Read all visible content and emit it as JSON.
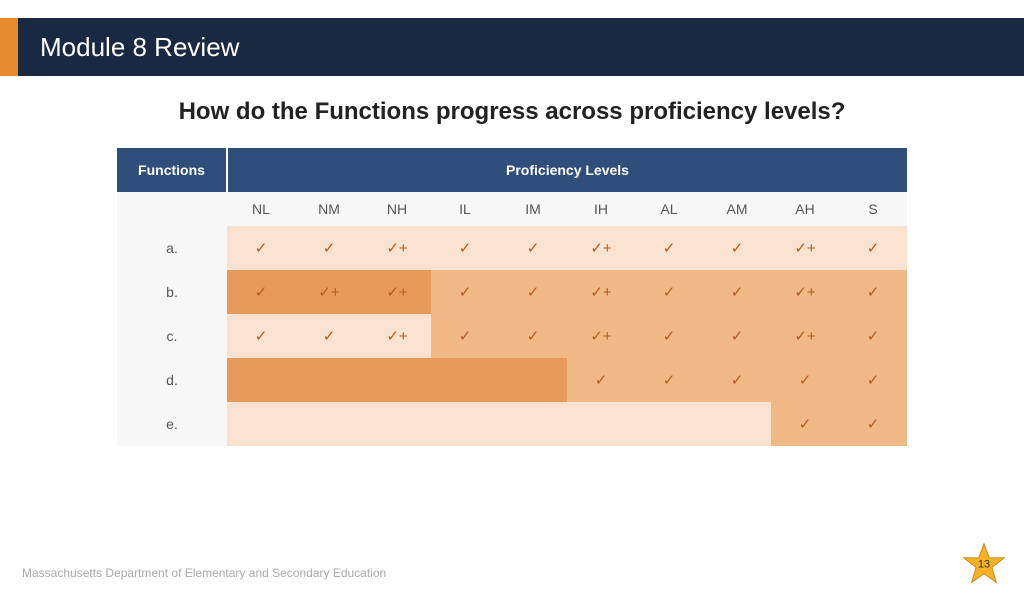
{
  "header": {
    "title": "Module 8 Review"
  },
  "subtitle": "How do the Functions progress across proficiency levels?",
  "table": {
    "functions_header": "Functions",
    "proficiency_header": "Proficiency Levels",
    "levels": [
      "NL",
      "NM",
      "NH",
      "IL",
      "IM",
      "IH",
      "AL",
      "AM",
      "AH",
      "S"
    ],
    "rows": [
      {
        "label": "a.",
        "cells": [
          "✓",
          "✓",
          "✓+",
          "✓",
          "✓",
          "✓+",
          "✓",
          "✓",
          "✓+",
          "✓"
        ],
        "colors": [
          "#f9e3d0",
          "#f9e3d0",
          "#f9e3d0",
          "#f9e3d0",
          "#f9e3d0",
          "#f9e3d0",
          "#f9e3d0",
          "#f9e3d0",
          "#f9e3d0",
          "#f9e3d0"
        ]
      },
      {
        "label": "b.",
        "cells": [
          "✓",
          "✓+",
          "✓+",
          "✓",
          "✓",
          "✓+",
          "✓",
          "✓",
          "✓+",
          "✓"
        ],
        "colors": [
          "#e89a5a",
          "#e89a5a",
          "#e89a5a",
          "#f0b986",
          "#f0b986",
          "#f0b986",
          "#f0b986",
          "#f0b986",
          "#f0b986",
          "#f0b986"
        ]
      },
      {
        "label": "c.",
        "cells": [
          "✓",
          "✓",
          "✓+",
          "✓",
          "✓",
          "✓+",
          "✓",
          "✓",
          "✓+",
          "✓"
        ],
        "colors": [
          "#f9e3d0",
          "#f9e3d0",
          "#f9e3d0",
          "#f0b986",
          "#f0b986",
          "#f0b986",
          "#f0b986",
          "#f0b986",
          "#f0b986",
          "#f0b986"
        ]
      },
      {
        "label": "d.",
        "cells": [
          "",
          "",
          "",
          "",
          "",
          "✓",
          "✓",
          "✓",
          "✓",
          "✓"
        ],
        "colors": [
          "#e89a5a",
          "#e89a5a",
          "#e89a5a",
          "#e89a5a",
          "#e89a5a",
          "#f0b986",
          "#f0b986",
          "#f0b986",
          "#f0b986",
          "#f0b986"
        ]
      },
      {
        "label": "e.",
        "cells": [
          "",
          "",
          "",
          "",
          "",
          "",
          "",
          "",
          "✓",
          "✓"
        ],
        "colors": [
          "#f9e3d0",
          "#f9e3d0",
          "#f9e3d0",
          "#f9e3d0",
          "#f9e3d0",
          "#f9e3d0",
          "#f9e3d0",
          "#f9e3d0",
          "#f0b986",
          "#f0b986"
        ]
      }
    ]
  },
  "footer": "Massachusetts Department of Elementary and Secondary Education",
  "page_number": "13",
  "colors": {
    "header_bg": "#1a2942",
    "accent": "#e78b2f",
    "table_header": "#304e7a",
    "star_fill": "#f5b324",
    "star_stroke": "#c8820e"
  }
}
